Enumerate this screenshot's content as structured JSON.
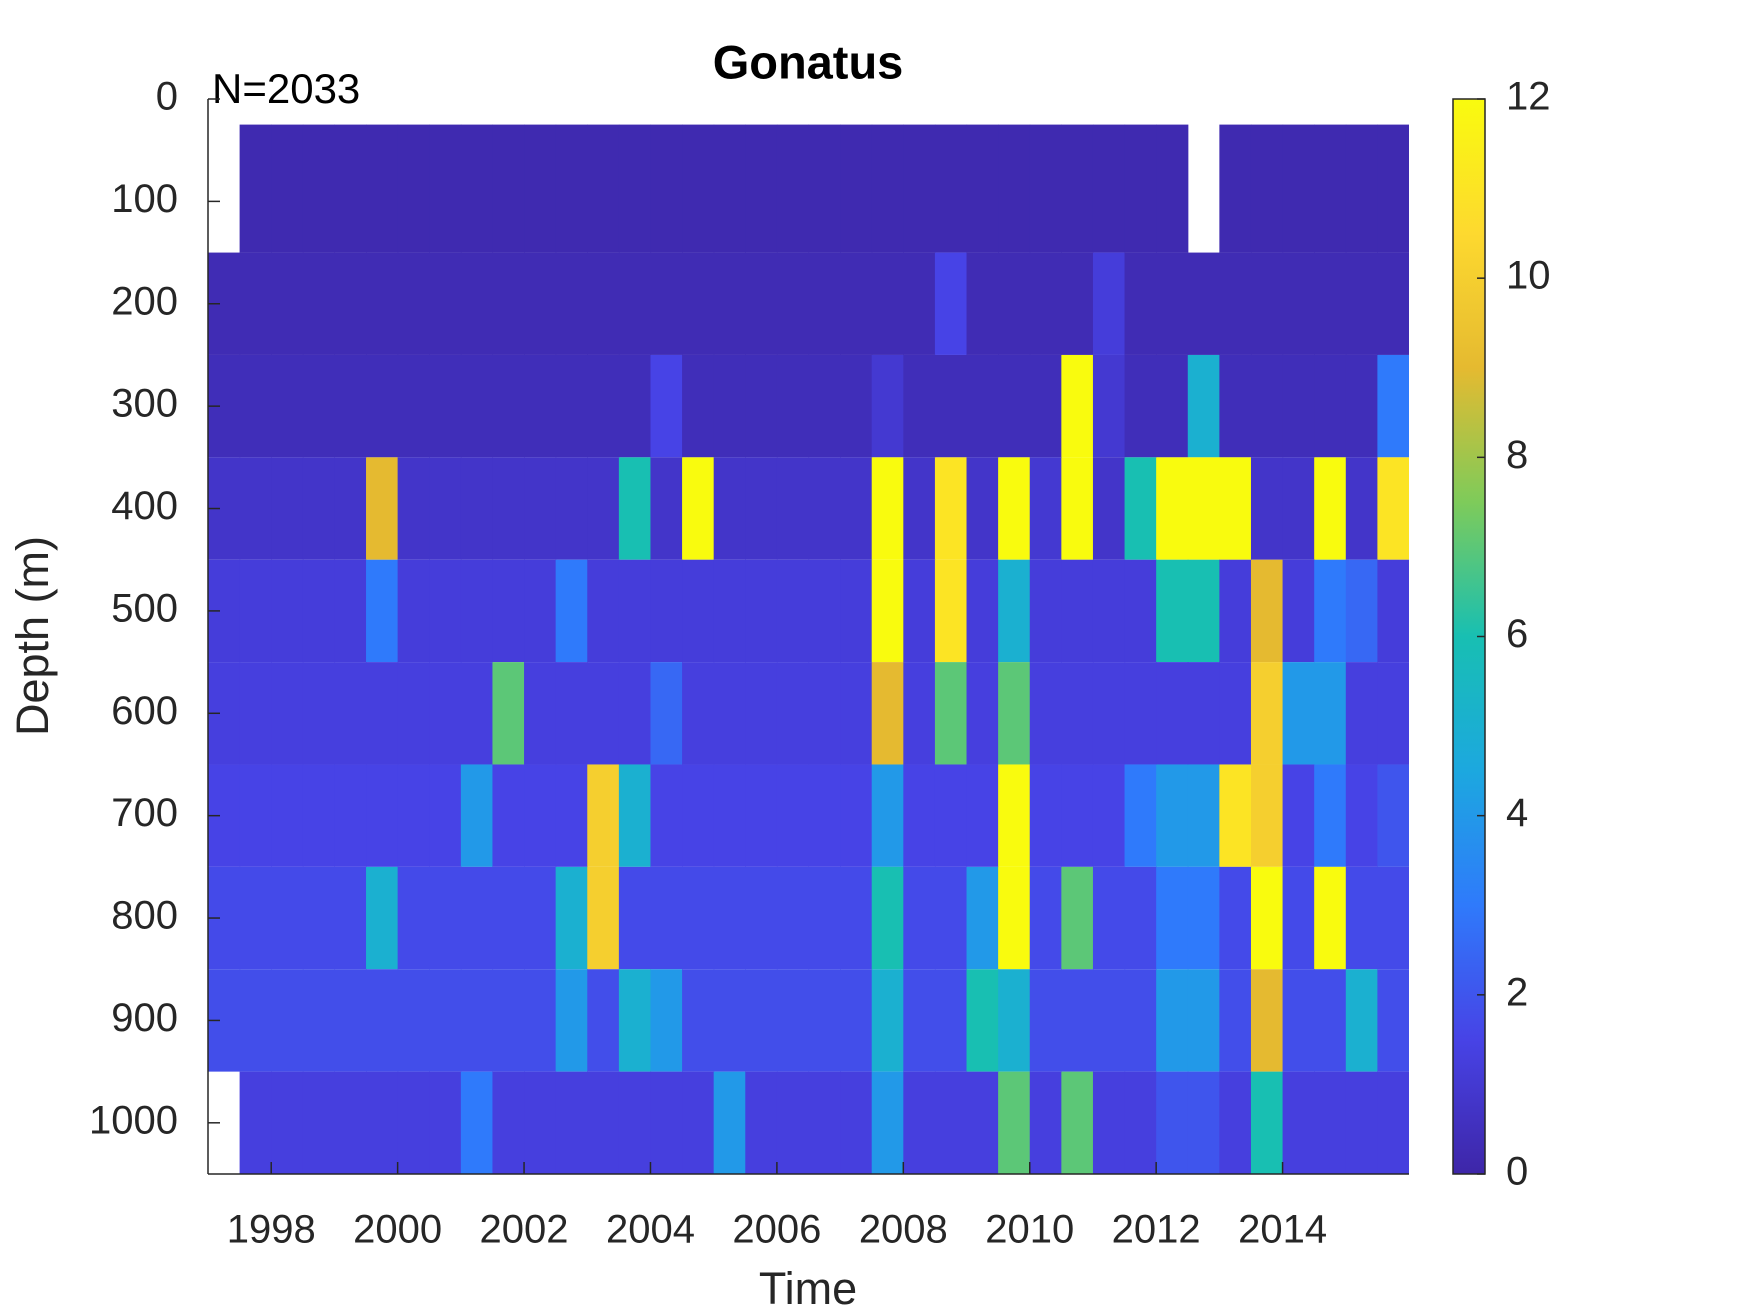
{
  "chart_data": {
    "type": "heatmap",
    "title": "Gonatus",
    "annotation": "N=2033",
    "xlabel": "Time",
    "ylabel": "Depth (m)",
    "xlim": [
      1997,
      2016
    ],
    "xticks": [
      1998,
      2000,
      2002,
      2004,
      2006,
      2008,
      2010,
      2012,
      2014
    ],
    "ylim": [
      0,
      1050
    ],
    "yticks": [
      0,
      100,
      200,
      300,
      400,
      500,
      600,
      700,
      800,
      900,
      1000
    ],
    "y_reversed": true,
    "zlim": [
      0,
      12
    ],
    "zticks": [
      0,
      2,
      4,
      6,
      8,
      10,
      12
    ],
    "colors": [
      "#3e26a8",
      "#4743e6",
      "#2f7afb",
      "#1ca8df",
      "#18bfb2",
      "#7ecb5a",
      "#e5ba30",
      "#fdd92f",
      "#f9fb0e"
    ],
    "x_edges": [
      1997,
      1997.5,
      1998,
      1998.5,
      1999,
      1999.5,
      2000,
      2000.5,
      2001,
      2001.5,
      2002,
      2002.5,
      2003,
      2003.5,
      2004,
      2004.5,
      2005,
      2005.5,
      2006,
      2006.5,
      2007,
      2007.5,
      2008,
      2008.5,
      2009,
      2009.5,
      2010,
      2010.5,
      2011,
      2011.5,
      2012,
      2012.5,
      2013,
      2013.5,
      2014,
      2014.5,
      2015,
      2015.5,
      2016
    ],
    "y_edges": [
      25,
      150,
      250,
      350,
      450,
      550,
      650,
      750,
      850,
      950,
      1050
    ],
    "z": [
      [
        null,
        0.2,
        0.2,
        0.2,
        0.2,
        0.2,
        0.2,
        0.2,
        0.2,
        0.2,
        0.2,
        0.2,
        0.2,
        0.2,
        0.2,
        0.2,
        0.2,
        0.2,
        0.2,
        0.2,
        0.2,
        0.2,
        0.2,
        0.2,
        0.2,
        0.2,
        0.2,
        0.2,
        0.2,
        0.2,
        0.2,
        null,
        0.2,
        0.2,
        0.2,
        0.2,
        0.2,
        0.2
      ],
      [
        0.3,
        0.3,
        0.3,
        0.3,
        0.3,
        0.3,
        0.3,
        0.3,
        0.3,
        0.3,
        0.3,
        0.3,
        0.3,
        0.3,
        0.3,
        0.3,
        0.3,
        0.3,
        0.3,
        0.3,
        0.3,
        0.3,
        0.3,
        1.5,
        0.3,
        0.3,
        0.3,
        0.3,
        1.2,
        0.3,
        0.3,
        0.3,
        0.3,
        0.3,
        0.3,
        0.3,
        0.3,
        0.3
      ],
      [
        0.4,
        0.4,
        0.4,
        0.4,
        0.4,
        0.4,
        0.4,
        0.4,
        0.4,
        0.4,
        0.4,
        0.4,
        0.4,
        0.4,
        1.5,
        0.4,
        0.4,
        0.4,
        0.4,
        0.4,
        0.4,
        1,
        0.4,
        0.4,
        0.4,
        0.4,
        0.4,
        12,
        1,
        0.4,
        0.4,
        5,
        0.4,
        0.4,
        0.4,
        0.4,
        0.4,
        3
      ],
      [
        0.8,
        0.8,
        0.8,
        0.8,
        0.8,
        9,
        0.8,
        0.8,
        0.8,
        0.8,
        0.8,
        0.8,
        0.8,
        6,
        0.8,
        12,
        0.8,
        0.8,
        0.8,
        0.8,
        0.8,
        12,
        0.8,
        11,
        0.8,
        12,
        1,
        12,
        0.8,
        6,
        12,
        12,
        12,
        0.8,
        0.8,
        12,
        0.8,
        11
      ],
      [
        1.2,
        1.2,
        1.2,
        1.2,
        1.2,
        3,
        1.2,
        1.2,
        1.2,
        1.2,
        1.2,
        3,
        1.2,
        1.2,
        1.2,
        1.2,
        1.2,
        1.2,
        1.2,
        1.2,
        1.2,
        12,
        1.2,
        11,
        1.2,
        5,
        1.2,
        1.2,
        1.2,
        1.2,
        6,
        6,
        1.2,
        9,
        1.2,
        3,
        2.5,
        1.2
      ],
      [
        1.3,
        1.3,
        1.3,
        1.3,
        1.3,
        1.3,
        1.3,
        1.3,
        1.3,
        7,
        1.3,
        1.3,
        1.3,
        1.3,
        2.5,
        1.3,
        1.3,
        1.3,
        1.3,
        1.3,
        1.3,
        9,
        1.3,
        7,
        1.3,
        7,
        1.3,
        1.3,
        1.3,
        1.3,
        1.3,
        1.3,
        1.3,
        10,
        4,
        4,
        1.3,
        1.3
      ],
      [
        1.5,
        1.5,
        1.5,
        1.5,
        1.5,
        1.5,
        1.5,
        1.5,
        4,
        1.5,
        1.5,
        1.5,
        10,
        5,
        1.5,
        1.5,
        1.5,
        1.5,
        1.5,
        1.5,
        1.5,
        4,
        1.5,
        1.5,
        1.5,
        12,
        1.5,
        1.5,
        1.5,
        3,
        4,
        4,
        11,
        10,
        1.5,
        3,
        1.5,
        2
      ],
      [
        1.7,
        1.7,
        1.7,
        1.7,
        1.7,
        5,
        1.7,
        1.7,
        1.7,
        1.7,
        1.7,
        5,
        10,
        1.7,
        1.7,
        1.7,
        1.7,
        1.7,
        1.7,
        1.7,
        1.7,
        6,
        1.7,
        1.7,
        4,
        12,
        1.7,
        7,
        1.7,
        1.7,
        3,
        3,
        1.7,
        12,
        1.7,
        12,
        1.7,
        1.7
      ],
      [
        1.8,
        1.8,
        1.8,
        1.8,
        1.8,
        1.8,
        1.8,
        1.8,
        1.8,
        1.8,
        1.8,
        4,
        1.8,
        5,
        4,
        1.8,
        1.8,
        1.8,
        1.8,
        1.8,
        1.8,
        5,
        1.8,
        1.8,
        6,
        5,
        1.8,
        1.8,
        1.8,
        1.8,
        4,
        4,
        1.8,
        9,
        1.8,
        1.8,
        5,
        1.8
      ],
      [
        null,
        1.3,
        1.3,
        1.3,
        1.3,
        1.3,
        1.3,
        1.3,
        3,
        1.3,
        1.3,
        1.3,
        1.3,
        1.3,
        1.3,
        1.3,
        4,
        1.3,
        1.3,
        1.3,
        1.3,
        4,
        1.3,
        1.3,
        1.3,
        7,
        1.3,
        7,
        1.3,
        1.3,
        2,
        2,
        1.3,
        6,
        1.3,
        1.3,
        1.3,
        1.3
      ]
    ]
  }
}
